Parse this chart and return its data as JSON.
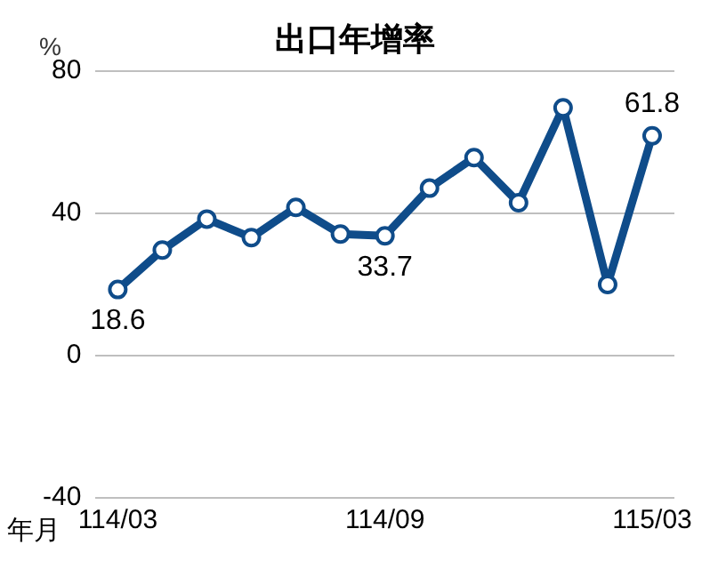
{
  "chart_data": {
    "type": "line",
    "title": "出口年增率",
    "xlabel": "年月",
    "ylabel": "%",
    "categories": [
      "114/03",
      null,
      null,
      null,
      null,
      null,
      "114/09",
      null,
      null,
      null,
      null,
      null,
      "115/03"
    ],
    "series": [
      {
        "color": "#0f4c8a",
        "values": [
          18.6,
          29.7,
          38.4,
          33.2,
          41.7,
          34.2,
          33.7,
          47.1,
          55.7,
          43.0,
          69.7,
          20.0,
          61.8
        ],
        "value_labels": [
          "18.6",
          null,
          null,
          null,
          null,
          null,
          "33.7",
          null,
          null,
          null,
          null,
          null,
          "61.8"
        ]
      }
    ],
    "ylim": [
      -40,
      80
    ],
    "yticks": [
      -40,
      0,
      40,
      80
    ],
    "grid": "y",
    "marker": "circle",
    "line_style": "solid",
    "legend": false
  }
}
